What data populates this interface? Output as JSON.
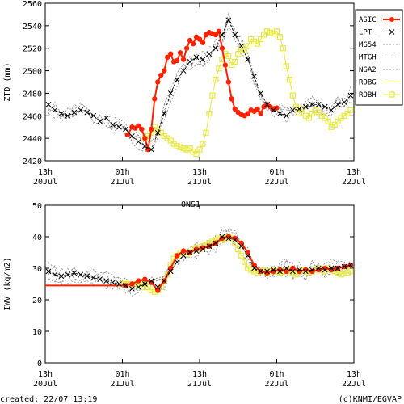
{
  "colors": {
    "asic": "#ff2200",
    "lpt": "#000000",
    "gray": "#888888",
    "yellow": "#e8e840",
    "axis": "#000000"
  },
  "footer": {
    "created": "created: 22/07 13:19",
    "credit": "(c)KNMI/EGVAP"
  },
  "chart_data": [
    {
      "type": "line",
      "ylabel": "ZTD (mm)",
      "ylim": [
        2420,
        2560
      ],
      "yticks": [
        "2420",
        "2440",
        "2460",
        "2480",
        "2500",
        "2520",
        "2540",
        "2560"
      ],
      "xlim": [
        0,
        48
      ],
      "xticks_top": [
        "13h",
        "01h",
        "13h",
        "01h",
        "13h"
      ],
      "xticks_bottom": [
        "20Jul",
        "21Jul",
        "21Jul",
        "22Jul",
        "22Jul"
      ],
      "legend": [
        "ASIC",
        "LPT_",
        "MG54",
        "MTGH",
        "NGA2",
        "ROBG",
        "ROBH"
      ],
      "series": [
        {
          "name": "ASIC",
          "x": [
            12.8,
            13.5,
            14.0,
            14.5,
            15.0,
            15.5,
            16.0,
            16.5,
            17.0,
            17.5,
            18.0,
            18.5,
            19.0,
            19.5,
            20.0,
            20.5,
            21.0,
            21.5,
            22.0,
            22.5,
            23.0,
            23.5,
            24.0,
            24.5,
            25.0,
            25.5,
            26.0,
            26.5,
            27.0,
            27.5,
            28.0,
            28.5,
            29.0,
            29.5,
            30.0,
            30.5,
            31.0,
            31.5,
            32.0,
            32.5,
            33.0,
            33.5,
            34.0,
            34.5,
            35.0,
            35.5,
            36.0
          ],
          "y": [
            2443,
            2450,
            2449,
            2451,
            2448,
            2440,
            2430,
            2448,
            2475,
            2490,
            2496,
            2500,
            2512,
            2515,
            2508,
            2509,
            2516,
            2510,
            2520,
            2527,
            2524,
            2530,
            2528,
            2525,
            2532,
            2534,
            2533,
            2532,
            2535,
            2520,
            2505,
            2490,
            2475,
            2466,
            2463,
            2461,
            2460,
            2462,
            2465,
            2464,
            2466,
            2462,
            2468,
            2470,
            2468,
            2466,
            2467
          ]
        },
        {
          "name": "LPT_",
          "x": [
            0.5,
            1.5,
            2.5,
            3.5,
            4.5,
            5.5,
            6.5,
            7.5,
            8.5,
            9.5,
            10.5,
            11.5,
            12.5,
            13.5,
            14.5,
            15.5,
            16.5,
            17.5,
            18.5,
            19.5,
            20.5,
            21.5,
            22.5,
            23.5,
            24.5,
            25.5,
            26.5,
            27.5,
            28.5,
            29.5,
            30.5,
            31.5,
            32.5,
            33.5,
            34.5,
            35.5,
            36.5,
            37.5,
            38.5,
            39.5,
            40.5,
            41.5,
            42.5,
            43.5,
            44.5,
            45.5,
            46.5,
            47.5
          ],
          "y": [
            2470,
            2465,
            2462,
            2460,
            2463,
            2465,
            2463,
            2460,
            2455,
            2458,
            2452,
            2450,
            2448,
            2442,
            2437,
            2433,
            2430,
            2445,
            2462,
            2480,
            2492,
            2500,
            2508,
            2512,
            2510,
            2515,
            2520,
            2532,
            2545,
            2532,
            2522,
            2510,
            2495,
            2480,
            2470,
            2465,
            2462,
            2460,
            2465,
            2466,
            2468,
            2470,
            2470,
            2468,
            2465,
            2470,
            2472,
            2478
          ]
        },
        {
          "name": "ROBH",
          "x": [
            15.5,
            16.0,
            16.5,
            17.0,
            17.5,
            18.0,
            18.5,
            19.0,
            19.5,
            20.0,
            20.5,
            21.0,
            21.5,
            22.0,
            22.5,
            23.0,
            23.5,
            24.0,
            24.5,
            25.0,
            25.5,
            26.0,
            26.5,
            27.0,
            27.5,
            28.0,
            28.5,
            29.0,
            29.5,
            30.0,
            30.5,
            31.0,
            31.5,
            32.0,
            32.5,
            33.0,
            33.5,
            34.0,
            34.5,
            35.0,
            35.5,
            36.0,
            36.5,
            37.0,
            37.5,
            38.0,
            38.5,
            39.0,
            39.5,
            40.0,
            40.5,
            41.0,
            41.5,
            42.0,
            42.5,
            43.0,
            43.5,
            44.0,
            44.5,
            45.0,
            45.5,
            46.0,
            46.5,
            47.0,
            47.5
          ],
          "y": [
            2440,
            2442,
            2445,
            2450,
            2447,
            2445,
            2442,
            2440,
            2438,
            2435,
            2433,
            2432,
            2431,
            2430,
            2431,
            2428,
            2426,
            2430,
            2435,
            2445,
            2462,
            2478,
            2492,
            2502,
            2510,
            2515,
            2513,
            2505,
            2508,
            2515,
            2520,
            2518,
            2522,
            2528,
            2526,
            2524,
            2528,
            2532,
            2535,
            2534,
            2533,
            2535,
            2530,
            2520,
            2504,
            2492,
            2478,
            2468,
            2462,
            2466,
            2460,
            2458,
            2462,
            2465,
            2463,
            2460,
            2458,
            2455,
            2450,
            2452,
            2455,
            2458,
            2460,
            2462,
            2465
          ]
        }
      ]
    },
    {
      "type": "line",
      "title": "ONS1",
      "ylabel": "IWV (kg/m2)",
      "ylim": [
        0,
        50
      ],
      "yticks": [
        "0",
        "10",
        "20",
        "30",
        "40",
        "50"
      ],
      "xlim": [
        0,
        48
      ],
      "xticks_top": [
        "13h",
        "01h",
        "13h",
        "01h",
        "13h"
      ],
      "xticks_bottom": [
        "20Jul",
        "21Jul",
        "21Jul",
        "22Jul",
        "22Jul"
      ],
      "series": [
        {
          "name": "ASIC",
          "x": [
            0,
            12.5,
            13.5,
            14.5,
            15.5,
            16.5,
            17.5,
            18.5,
            19.5,
            20.5,
            21.5,
            22.5,
            23.5,
            24.5,
            25.5,
            26.5,
            27.5,
            28.5,
            29.5,
            30.5,
            31.5,
            32.5,
            33.5,
            34.5,
            35.5,
            36.5,
            37.5,
            38.5,
            39.5,
            40.5,
            41.5,
            42.5,
            43.5,
            44.5,
            45.5,
            46.5,
            47.5
          ],
          "y": [
            24.5,
            24.5,
            25,
            26,
            26.5,
            25.5,
            23,
            26,
            30,
            34,
            35.5,
            35,
            36,
            36.5,
            37,
            38,
            39.5,
            40,
            39.5,
            38,
            35,
            31,
            29,
            28.5,
            29,
            29.5,
            29,
            30,
            29,
            29.5,
            29,
            29.5,
            30,
            29.5,
            30,
            30.5,
            31
          ]
        },
        {
          "name": "LPT_",
          "x": [
            0.5,
            1.5,
            2.5,
            3.5,
            4.5,
            5.5,
            6.5,
            7.5,
            8.5,
            9.5,
            10.5,
            11.5,
            12.5,
            13.5,
            14.5,
            15.5,
            16.5,
            17.5,
            18.5,
            19.5,
            20.5,
            21.5,
            22.5,
            23.5,
            24.5,
            25.5,
            26.5,
            27.5,
            28.5,
            29.5,
            30.5,
            31.5,
            32.5,
            33.5,
            34.5,
            35.5,
            36.5,
            37.5,
            38.5,
            39.5,
            40.5,
            41.5,
            42.5,
            43.5,
            44.5,
            45.5,
            46.5,
            47.5
          ],
          "y": [
            29,
            28,
            27.5,
            28,
            28.5,
            28,
            27.5,
            27,
            26.5,
            26,
            25.5,
            25,
            24.5,
            23.5,
            24,
            25,
            26,
            24,
            26,
            29,
            32,
            34,
            35,
            35.5,
            36,
            37,
            38,
            40,
            39.5,
            39,
            37,
            34,
            30,
            29,
            29,
            29.5,
            29,
            30,
            29,
            29.5,
            29,
            29.5,
            30,
            29.5,
            30,
            30,
            30.5,
            31
          ]
        },
        {
          "name": "ROBH",
          "x": [
            12,
            12.5,
            13,
            13.5,
            14,
            14.5,
            15,
            15.5,
            16,
            16.5,
            17,
            17.5,
            18,
            18.5,
            19,
            19.5,
            20,
            20.5,
            21,
            21.5,
            22,
            22.5,
            23,
            23.5,
            24,
            24.5,
            25,
            25.5,
            26,
            26.5,
            27,
            27.5,
            28,
            28.5,
            29,
            29.5,
            30,
            30.5,
            31,
            31.5,
            32,
            32.5,
            33,
            33.5,
            34,
            34.5,
            35,
            35.5,
            36,
            36.5,
            37,
            37.5,
            38,
            38.5,
            39,
            39.5,
            40,
            40.5,
            41,
            41.5,
            42,
            42.5,
            43,
            43.5,
            44,
            44.5,
            45,
            45.5,
            46,
            46.5,
            47,
            47.5
          ],
          "y": [
            25,
            25.5,
            25,
            24.5,
            25,
            25.5,
            24,
            25,
            24,
            23,
            22.5,
            23,
            24,
            26,
            28,
            31,
            33,
            34,
            35,
            35,
            34.5,
            35,
            36,
            36.5,
            36,
            37,
            37.5,
            38,
            38.5,
            39,
            39.5,
            39,
            39.5,
            40,
            39.5,
            38,
            36,
            34,
            32,
            30,
            29.5,
            29,
            28.5,
            29,
            29.5,
            28.5,
            29,
            29.5,
            29,
            28.5,
            29,
            29.5,
            29,
            28.5,
            28,
            29,
            29.5,
            29,
            28.5,
            29,
            29.5,
            30,
            29.5,
            29,
            30,
            29.5,
            29,
            28.5,
            28,
            29,
            28.5,
            29
          ]
        }
      ]
    }
  ]
}
